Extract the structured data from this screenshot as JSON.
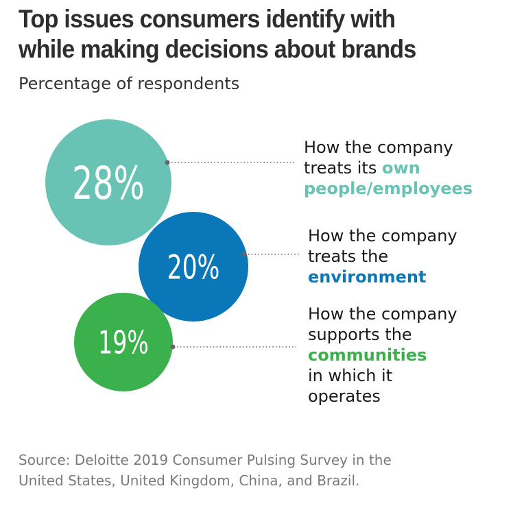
{
  "title_line1": "Top issues consumers identify with",
  "title_line2": "while making decisions about brands",
  "subtitle": "Percentage of respondents",
  "source_line1": "Source: Deloitte 2019 Consumer Pulsing Survey in the",
  "source_line2": "United States, United Kingdom, China, and Brazil.",
  "colors": {
    "teal": "#68c3b4",
    "blue": "#0a77b9",
    "green": "#3ab14d",
    "dots": "#666666"
  },
  "chart_data": {
    "type": "bubble",
    "title": "Top issues consumers identify with while making decisions about brands",
    "subtitle": "Percentage of respondents",
    "unit": "%",
    "items": [
      {
        "value": 28,
        "value_label": "28%",
        "label_plain": [
          "How the company",
          "treats its "
        ],
        "label_highlight": "own people/employees",
        "label_tail": []
      },
      {
        "value": 20,
        "value_label": "20%",
        "label_plain": [
          "How the company",
          "treats the"
        ],
        "label_highlight": "environment",
        "label_tail": []
      },
      {
        "value": 19,
        "value_label": "19%",
        "label_plain": [
          "How the company",
          "supports the"
        ],
        "label_highlight": "communities",
        "label_tail": [
          "in which it",
          "operates"
        ]
      }
    ]
  },
  "labels": {
    "a_line1": "How the company",
    "a_line2_plain": "treats its",
    "a_line2_hl": "own",
    "a_line3_hl": "people/employees",
    "b_line1": "How the company",
    "b_line2": "treats the",
    "b_line3_hl": "environment",
    "c_line1": "How the company",
    "c_line2": "supports the",
    "c_line3_hl": "communities",
    "c_line4": "in which it",
    "c_line5": "operates"
  }
}
